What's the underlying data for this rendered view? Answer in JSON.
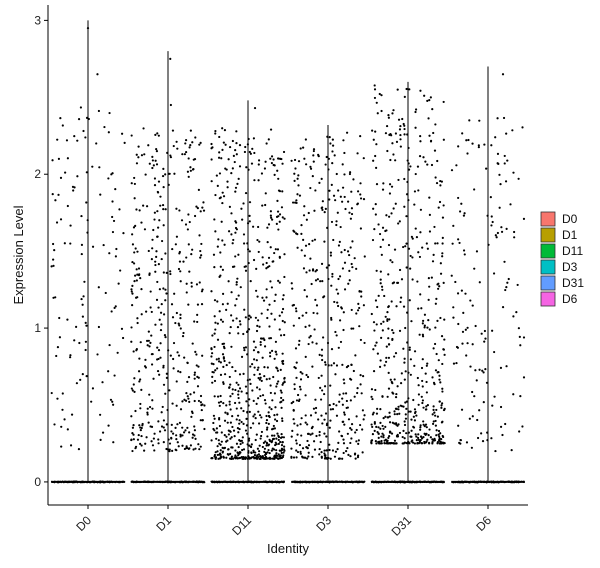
{
  "chart_data": {
    "type": "violin-jitter",
    "title": "",
    "xlabel": "Identity",
    "ylabel": "Expression Level",
    "categories": [
      "D0",
      "D1",
      "D11",
      "D3",
      "D31",
      "D6"
    ],
    "ylim": [
      -0.15,
      3.1
    ],
    "yticks": [
      0,
      1,
      2,
      3
    ],
    "grid": false,
    "legend_position": "right",
    "legend": [
      {
        "label": "D0",
        "color": "#F8766D"
      },
      {
        "label": "D1",
        "color": "#B79F00"
      },
      {
        "label": "D11",
        "color": "#00BA38"
      },
      {
        "label": "D3",
        "color": "#00BFC4"
      },
      {
        "label": "D31",
        "color": "#619CFF"
      },
      {
        "label": "D6",
        "color": "#F564E3"
      }
    ],
    "series": [
      {
        "category": "D0",
        "max": 3.0,
        "n_nonzero": 130,
        "dist": "uniform",
        "lo": 0.2,
        "hi": 2.45
      },
      {
        "category": "D1",
        "max": 2.8,
        "n_nonzero": 420,
        "dist": "uniform-lowbias",
        "lo": 0.2,
        "hi": 2.3
      },
      {
        "category": "D11",
        "max": 2.48,
        "n_nonzero": 720,
        "dist": "lowbias",
        "lo": 0.15,
        "hi": 2.3
      },
      {
        "category": "D3",
        "max": 2.32,
        "n_nonzero": 430,
        "dist": "uniform-lowbias",
        "lo": 0.15,
        "hi": 2.25
      },
      {
        "category": "D31",
        "max": 2.6,
        "n_nonzero": 560,
        "dist": "lowbias",
        "lo": 0.25,
        "hi": 2.6
      },
      {
        "category": "D6",
        "max": 2.7,
        "n_nonzero": 150,
        "dist": "uniform",
        "lo": 0.2,
        "hi": 2.4
      }
    ]
  }
}
